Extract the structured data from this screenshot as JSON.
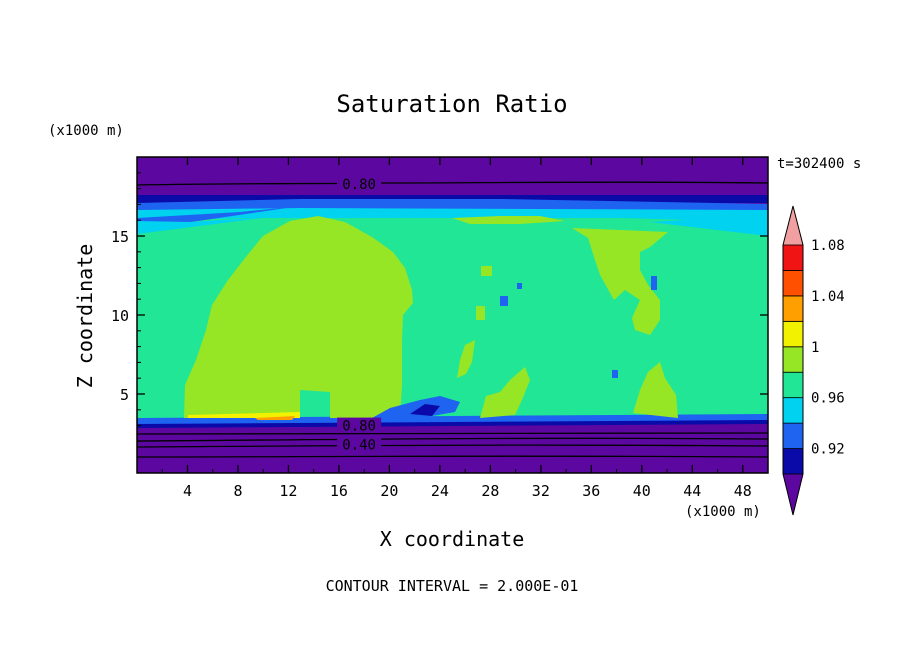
{
  "chart_data": {
    "type": "heatmap",
    "title": "Saturation Ratio",
    "time_label": "t=302400 s",
    "xlabel": "X coordinate",
    "ylabel": "Z coordinate",
    "x_unit": "(x1000 m)",
    "z_unit": "(x1000 m)",
    "xlim": [
      0,
      50
    ],
    "ylim": [
      0,
      20
    ],
    "x_ticks": [
      4,
      8,
      12,
      16,
      20,
      24,
      28,
      32,
      36,
      40,
      44,
      48
    ],
    "y_ticks": [
      5,
      10,
      15
    ],
    "contour_labels": [
      {
        "text": "0.80",
        "x": 17.6,
        "z": 18.3
      },
      {
        "text": "0.80",
        "x": 17.6,
        "z": 3.0
      },
      {
        "text": "0.40",
        "x": 17.6,
        "z": 1.8
      }
    ],
    "footer": "CONTOUR INTERVAL = 2.000E-01",
    "colorbar": {
      "tick_labels": [
        "0.92",
        "0.96",
        "1",
        "1.04",
        "1.08"
      ],
      "colors": [
        "#5c08a0",
        "#0a0aa8",
        "#1e64f0",
        "#00d2f0",
        "#20e696",
        "#96e626",
        "#f2f200",
        "#ffa000",
        "#ff5000",
        "#f01414",
        "#f0a0a0"
      ]
    },
    "field_colors": {
      "dry": "#5c08a0",
      "deep_blue": "#0a0aa8",
      "blue": "#1e64f0",
      "cyan": "#00d2f0",
      "near_saturated": "#20e696",
      "saturated": "#96e626",
      "yellow": "#f2f200",
      "orange": "#ffa000"
    }
  }
}
